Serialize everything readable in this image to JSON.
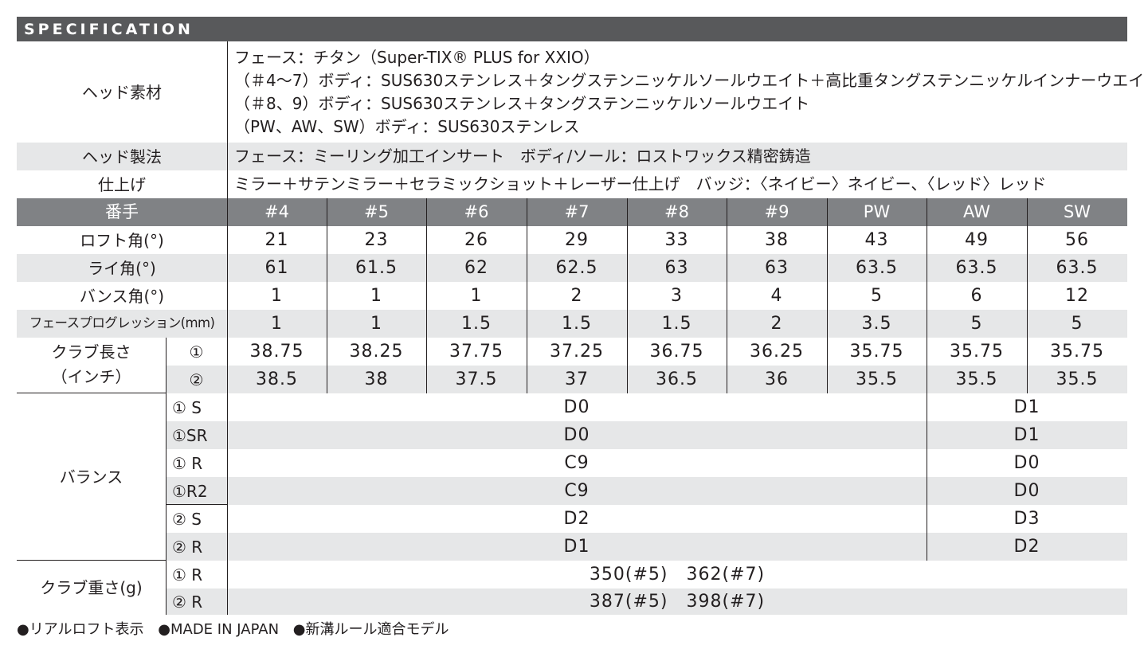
{
  "title": "SPECIFICATION",
  "head_material": {
    "label": "ヘッド素材",
    "lines": [
      "フェース：チタン（Super-TIX® PLUS for XXIO）",
      "（＃4～7）ボディ：SUS630ステンレス＋タングステンニッケルソールウエイト＋高比重タングステンニッケルインナーウエイト",
      "（＃8、9）ボディ：SUS630ステンレス＋タングステンニッケルソールウエイト",
      "（PW、AW、SW）ボディ：SUS630ステンレス"
    ]
  },
  "head_method": {
    "label": "ヘッド製法",
    "value": "フェース：ミーリング加工インサート　ボディ/ソール：ロストワックス精密鋳造"
  },
  "finish": {
    "label": "仕上げ",
    "value": "ミラー＋サテンミラー＋セラミックショット＋レーザー仕上げ　バッジ：〈ネイビー〉ネイビー、〈レッド〉レッド"
  },
  "number_header": {
    "label": "番手",
    "numbers": [
      "#4",
      "#5",
      "#6",
      "#7",
      "#8",
      "#9",
      "PW",
      "AW",
      "SW"
    ]
  },
  "rows": [
    {
      "label": "ロフト角(°)",
      "values": [
        "21",
        "23",
        "26",
        "29",
        "33",
        "38",
        "43",
        "49",
        "56"
      ]
    },
    {
      "label": "ライ角(°)",
      "values": [
        "61",
        "61.5",
        "62",
        "62.5",
        "63",
        "63",
        "63.5",
        "63.5",
        "63.5"
      ]
    },
    {
      "label": "バンス角(°)",
      "values": [
        "1",
        "1",
        "1",
        "2",
        "3",
        "4",
        "5",
        "6",
        "12"
      ]
    },
    {
      "label": "フェースプログレッション(mm)",
      "values": [
        "1",
        "1",
        "1.5",
        "1.5",
        "1.5",
        "2",
        "3.5",
        "5",
        "5"
      ]
    }
  ],
  "club_length": {
    "label_line1": "クラブ長さ",
    "label_line2": "（インチ）",
    "rows": [
      {
        "sub": "①",
        "values": [
          "38.75",
          "38.25",
          "37.75",
          "37.25",
          "36.75",
          "36.25",
          "35.75",
          "35.75",
          "35.75"
        ]
      },
      {
        "sub": "②",
        "values": [
          "38.5",
          "38",
          "37.5",
          "37",
          "36.5",
          "36",
          "35.5",
          "35.5",
          "35.5"
        ]
      }
    ]
  },
  "balance": {
    "label": "バランス",
    "rows": [
      {
        "sub": "① S",
        "main": "D0",
        "wedge": "D1"
      },
      {
        "sub": "①SR",
        "main": "D0",
        "wedge": "D1"
      },
      {
        "sub": "① R",
        "main": "C9",
        "wedge": "D0"
      },
      {
        "sub": "①R2",
        "main": "C9",
        "wedge": "D0"
      },
      {
        "sub": "② S",
        "main": "D2",
        "wedge": "D3"
      },
      {
        "sub": "② R",
        "main": "D1",
        "wedge": "D2"
      }
    ]
  },
  "club_weight": {
    "label": "クラブ重さ(g)",
    "rows": [
      {
        "sub": "① R",
        "value": "350(#5)　362(#7)"
      },
      {
        "sub": "② R",
        "value": "387(#5)　398(#7)"
      }
    ]
  },
  "footer": [
    "●リアルロフト表示",
    "●MADE IN JAPAN",
    "●新溝ルール適合モデル"
  ]
}
